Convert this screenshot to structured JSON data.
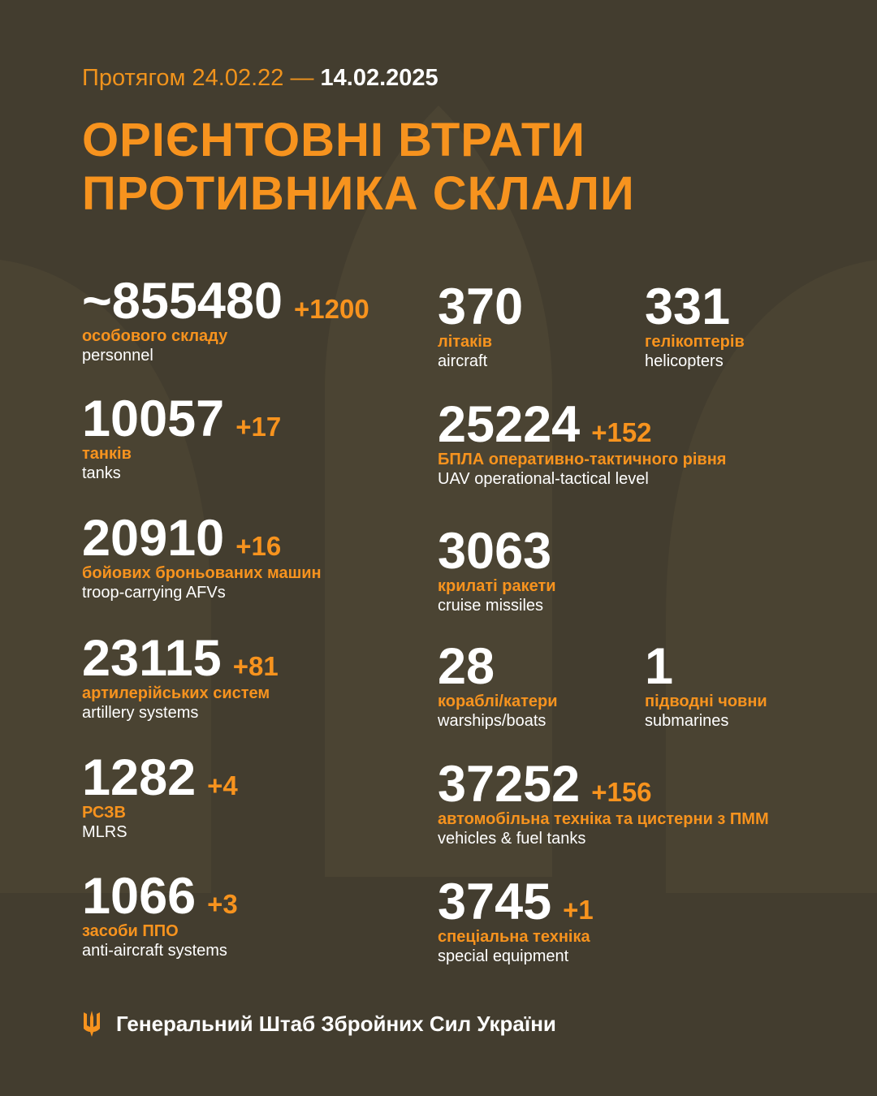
{
  "header": {
    "period_prefix": "Протягом 24.02.22 —",
    "period_end": "14.02.2025",
    "title_line1": "ОРІЄНТОВНІ ВТРАТИ",
    "title_line2": "ПРОТИВНИКА СКЛАЛИ"
  },
  "colors": {
    "background": "#433d2f",
    "accent": "#f7931e",
    "text": "#ffffff"
  },
  "stats": [
    {
      "value": "~855480",
      "delta": "+1200",
      "ua": "особового складу",
      "en": "personnel"
    },
    {
      "value": "10057",
      "delta": "+17",
      "ua": "танків",
      "en": "tanks"
    },
    {
      "value": "20910",
      "delta": "+16",
      "ua": "бойових броньованих машин",
      "en": "troop-carrying AFVs"
    },
    {
      "value": "23115",
      "delta": "+81",
      "ua": "артилерійських систем",
      "en": "artillery systems"
    },
    {
      "value": "1282",
      "delta": "+4",
      "ua": "РСЗВ",
      "en": "MLRS"
    },
    {
      "value": "1066",
      "delta": "+3",
      "ua": "засоби ППО",
      "en": "anti-aircraft systems"
    },
    {
      "value": "370",
      "delta": "",
      "ua": "літаків",
      "en": "aircraft"
    },
    {
      "value": "331",
      "delta": "",
      "ua": "гелікоптерів",
      "en": "helicopters"
    },
    {
      "value": "25224",
      "delta": "+152",
      "ua": "БПЛА оперативно-тактичного рівня",
      "en": "UAV operational-tactical level"
    },
    {
      "value": "3063",
      "delta": "",
      "ua": "крилаті ракети",
      "en": "cruise missiles"
    },
    {
      "value": "28",
      "delta": "",
      "ua": "кораблі/катери",
      "en": "warships/boats"
    },
    {
      "value": "1",
      "delta": "",
      "ua": "підводні човни",
      "en": "submarines"
    },
    {
      "value": "37252",
      "delta": "+156",
      "ua": "автомобільна техніка та цистерни з ПММ",
      "en": "vehicles & fuel tanks"
    },
    {
      "value": "3745",
      "delta": "+1",
      "ua": "спеціальна техніка",
      "en": "special equipment"
    }
  ],
  "footer": {
    "icon": "trident-icon",
    "text": "Генеральний Штаб Збройних Сил України"
  }
}
